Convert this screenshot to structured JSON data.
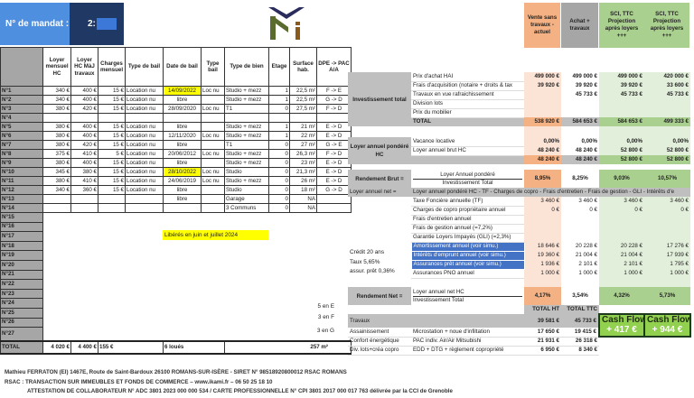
{
  "mandat": {
    "label": "N° de mandat :",
    "value": "2:"
  },
  "lots_table": {
    "headers": [
      "",
      "Loyer mensuel HC",
      "Loyer HC MàJ travaux",
      "Charges mensuel",
      "Type de bail",
      "Date de bail",
      "Type bail",
      "Type de bien",
      "Etage",
      "Surface hab.",
      "DPE -> PAC A/A"
    ],
    "rows": [
      {
        "id": "N°1",
        "loyer": "340 €",
        "loyer_maj": "400 €",
        "charges": "15 €",
        "type_bail": "Location nu",
        "date": "14/09/2022",
        "type": "Loc nu",
        "bien": "Studio + mezz",
        "etage": "1",
        "surface": "22,5 m²",
        "dpe": "F -> E",
        "date_highlight": true
      },
      {
        "id": "N°2",
        "loyer": "340 €",
        "loyer_maj": "400 €",
        "charges": "15 €",
        "type_bail": "Location nu",
        "date": "libre",
        "type": "",
        "bien": "Studio + mezz",
        "etage": "1",
        "surface": "22,5 m²",
        "dpe": "G -> D"
      },
      {
        "id": "N°3",
        "loyer": "380 €",
        "loyer_maj": "420 €",
        "charges": "15 €",
        "type_bail": "Location nu",
        "date": "28/09/2020",
        "type": "Loc nu",
        "bien": "T1",
        "etage": "0",
        "surface": "27,5 m²",
        "dpe": "F -> D"
      },
      {
        "id": "N°4",
        "loyer": "",
        "loyer_maj": "",
        "charges": "",
        "type_bail": "",
        "date": "",
        "type": "",
        "bien": "",
        "etage": "",
        "surface": "",
        "dpe": ""
      },
      {
        "id": "N°5",
        "loyer": "380 €",
        "loyer_maj": "400 €",
        "charges": "15 €",
        "type_bail": "Location nu",
        "date": "libre",
        "type": "",
        "bien": "Studio + mezz",
        "etage": "1",
        "surface": "21 m²",
        "dpe": "E -> D"
      },
      {
        "id": "N°6",
        "loyer": "380 €",
        "loyer_maj": "400 €",
        "charges": "15 €",
        "type_bail": "Location nu",
        "date": "12/11/2020",
        "type": "Loc nu",
        "bien": "Studio + mezz",
        "etage": "1",
        "surface": "22 m²",
        "dpe": "E -> D"
      },
      {
        "id": "N°7",
        "loyer": "380 €",
        "loyer_maj": "420 €",
        "charges": "15 €",
        "type_bail": "Location nu",
        "date": "libre",
        "type": "",
        "bien": "T1",
        "etage": "0",
        "surface": "27 m²",
        "dpe": "G -> E"
      },
      {
        "id": "N°8",
        "loyer": "375 €",
        "loyer_maj": "410 €",
        "charges": "5 €",
        "type_bail": "Location nu",
        "date": "20/06/2012",
        "type": "Loc nu",
        "bien": "Studio + mezz",
        "etage": "0",
        "surface": "26,3 m²",
        "dpe": "F -> D"
      },
      {
        "id": "N°9",
        "loyer": "380 €",
        "loyer_maj": "400 €",
        "charges": "15 €",
        "type_bail": "Location nu",
        "date": "libre",
        "type": "",
        "bien": "Studio + mezz",
        "etage": "0",
        "surface": "23 m²",
        "dpe": "E -> D"
      },
      {
        "id": "N°10",
        "loyer": "345 €",
        "loyer_maj": "380 €",
        "charges": "15 €",
        "type_bail": "Location nu",
        "date": "28/10/2022",
        "type": "Loc nu",
        "bien": "Studio",
        "etage": "0",
        "surface": "21,3 m²",
        "dpe": "E -> D",
        "date_highlight": true
      },
      {
        "id": "N°11",
        "loyer": "380 €",
        "loyer_maj": "410 €",
        "charges": "15 €",
        "type_bail": "Location nu",
        "date": "24/06/2019",
        "type": "Loc nu",
        "bien": "Studio + mezz",
        "etage": "0",
        "surface": "26 m²",
        "dpe": "E -> D"
      },
      {
        "id": "N°12",
        "loyer": "340 €",
        "loyer_maj": "360 €",
        "charges": "15 €",
        "type_bail": "Location nu",
        "date": "libre",
        "type": "",
        "bien": "Studio",
        "etage": "0",
        "surface": "18 m²",
        "dpe": "G -> D"
      },
      {
        "id": "N°13",
        "loyer": "",
        "loyer_maj": "",
        "charges": "",
        "type_bail": "",
        "date": "libre",
        "type": "",
        "bien": "Garage",
        "etage": "0",
        "surface": "NA",
        "dpe": ""
      },
      {
        "id": "N°14",
        "loyer": "",
        "loyer_maj": "",
        "charges": "",
        "type_bail": "",
        "date": "",
        "type": "",
        "bien": "3 Communs",
        "etage": "0",
        "surface": "NA",
        "dpe": ""
      }
    ],
    "empty_rows": [
      "N°15",
      "N°16",
      "N°17",
      "N°18",
      "N°19",
      "N°20",
      "N°21",
      "N°22",
      "N°23",
      "N°24",
      "N°25",
      "N°26",
      "N°27"
    ],
    "total": {
      "label": "TOTAL",
      "loyer": "4 020 €",
      "loyer_maj": "4 400 €",
      "charges": "155 €",
      "loues": "6 loués",
      "surface": "257 m²"
    },
    "note": "Libérés en juin et juillet 2024",
    "dpe_counts": [
      "5 en E",
      "3 en F",
      "3 en G"
    ]
  },
  "right": {
    "headers": [
      "Vente sans travaux - actuel",
      "Achat + travaux",
      "SCI, TTC Projection après loyers +++",
      "SCI, TTC Projection après loyers +++"
    ],
    "investment": {
      "label": "Investissement total",
      "rows": [
        {
          "desc": "Prix d'achat HAI",
          "v": [
            "499 000 €",
            "499 000 €",
            "499 000 €",
            "420 000 €"
          ]
        },
        {
          "desc": "Frais d'acquisition (notaire + droits & tax",
          "v": [
            "39 920 €",
            "39 920 €",
            "39 920 €",
            "33 600 €"
          ]
        },
        {
          "desc": "Travaux en vue rafraichissement",
          "v": [
            "",
            "45 733 €",
            "45 733 €",
            "45 733 €"
          ]
        },
        {
          "desc": "Division lots",
          "v": [
            "",
            "",
            "",
            ""
          ]
        },
        {
          "desc": "Prix du mobilier",
          "v": [
            "",
            "",
            "",
            ""
          ]
        }
      ],
      "total": {
        "desc": "TOTAL",
        "v": [
          "538 920 €",
          "584 653 €",
          "584 653 €",
          "499 333 €"
        ]
      }
    },
    "loyer": {
      "label": "Loyer annuel pondéré HC",
      "rows": [
        {
          "desc": "Vacance locative",
          "v": [
            "0,00%",
            "0,00%",
            "0,00%",
            "0,00%"
          ]
        },
        {
          "desc": "Loyer annuel brut HC",
          "v": [
            "48 240 €",
            "48 240 €",
            "52 800 €",
            "52 800 €"
          ]
        }
      ],
      "total": [
        "48 240 €",
        "48 240 €",
        "52 800 €",
        "52 800 €"
      ]
    },
    "rendement_brut": {
      "label": "Rendement Brut =",
      "numerator": "Loyer Annuel pondéré",
      "denominator": "Investissement Total",
      "v": [
        "8,95%",
        "8,25%",
        "9,03%",
        "10,57%"
      ]
    },
    "loyer_net": {
      "label": "Loyer annuel net =",
      "formula": "Loyer annuel pondéré HC - TF - Charges de copro - Frais d'entretien - Frais de gestion - GLI - Intérêts d'e",
      "rows": [
        {
          "desc": "Taxe Foncière annuelle (TF)",
          "v": [
            "3 460 €",
            "3 460 €",
            "3 460 €",
            "3 460 €"
          ]
        },
        {
          "desc": "Charges de copro propriétaire annuel",
          "v": [
            "0 €",
            "0 €",
            "0 €",
            "0 €"
          ]
        },
        {
          "desc": "Frais d'entretien annuel",
          "v": [
            "",
            "",
            "",
            ""
          ]
        },
        {
          "desc": "Frais de gestion annuel (=7,2%)",
          "v": [
            "",
            "",
            "",
            ""
          ]
        },
        {
          "desc": "Garantie Loyers Impayés (GLI) (=2,3%)",
          "v": [
            "",
            "",
            "",
            ""
          ]
        },
        {
          "desc": "Amortissement annuel (voir simu.)",
          "v": [
            "18 646 €",
            "20 228 €",
            "20 228 €",
            "17 276 €"
          ],
          "highlight": true
        },
        {
          "desc": "Intérêts d'emprunt annuel (voir simu.)",
          "v": [
            "19 360 €",
            "21 004 €",
            "21 004 €",
            "17 939 €"
          ],
          "highlight": true
        },
        {
          "desc": "Assurances prêt annuel (voir simu.)",
          "v": [
            "1 936 €",
            "2 101 €",
            "2 101 €",
            "1 795 €"
          ],
          "highlight": true
        },
        {
          "desc": "Assurances PNO annuel",
          "v": [
            "1 000 €",
            "1 000 €",
            "1 000 €",
            "1 000 €"
          ]
        }
      ]
    },
    "credit": [
      "Crédit 20 ans",
      "Taux 5,65%",
      "assur. prêt 0,36%"
    ],
    "rendement_net": {
      "label": "Rendement Net =",
      "numerator": "Loyer annuel net HC",
      "denominator": "Investissement Total",
      "v": [
        "4,17%",
        "3,54%",
        "4,32%",
        "5,73%"
      ]
    },
    "travaux": {
      "col_headers": [
        "TOTAL HT",
        "TOTAL TTC"
      ],
      "label": "Travaux",
      "totals": [
        "39 581 €",
        "45 733 €"
      ],
      "rows": [
        {
          "cat": "Assainissement",
          "desc": "Microstation + noue d'infiltation",
          "ht": "17 650 €",
          "ttc": "19 415 €"
        },
        {
          "cat": "Confort énergétique",
          "desc": "PAC indiv. Air/Air Mitsubishi",
          "ht": "21 931 €",
          "ttc": "26 318 €"
        },
        {
          "cat": "Div. lots+créa copro",
          "desc": "EDD + DTG + règlement copropriété",
          "ht": "6 950 €",
          "ttc": "8 340 €"
        }
      ]
    },
    "cash_flow": [
      {
        "label": "Cash Flow",
        "value": "+ 417 €"
      },
      {
        "label": "Cash Flow",
        "value": "+ 944 €"
      }
    ]
  },
  "footer": [
    "Mathieu FERRATON (EI) 1467E, Route de Saint-Bardoux 26100 ROMANS-SUR-ISÈRE - SIRET N° 98518920800012 RSAC ROMANS",
    "RSAC :  TRANSACTION SUR IMMEUBLES ET FONDS DE COMMERCE – www.ikami.fr – 06 50 25 18 10",
    "ATTESTATION DE COLLABORATEUR N° ADC 3801 2023 000 000 534 / CARTE PROFESSIONNELLE N° CPI 3801 2017 000 017 763 délivrée par la CCI de Grenoble"
  ],
  "colors": {
    "mandat_light": "#4f8fe0",
    "mandat_dark": "#1f3864",
    "vente": "#f4b183",
    "achat": "#bfbfbf",
    "sci": "#a9d08e",
    "highlight_yellow": "#ffff00",
    "blue_rows": "#4472c4",
    "cash_flow": "#92d050"
  },
  "logo": {
    "text": "Mi"
  }
}
